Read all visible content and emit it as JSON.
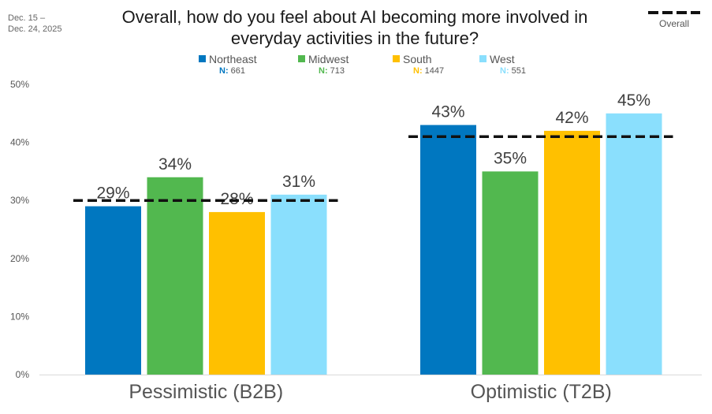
{
  "date_range": "Dec. 15 –\nDec. 24, 2025",
  "overall_legend_label": "Overall",
  "chart_data": {
    "type": "bar",
    "title": "Overall, how do you feel about AI becoming more involved in everyday activities in the future?",
    "categories": [
      "Pessimistic (B2B)",
      "Optimistic (T2B)"
    ],
    "series": [
      {
        "name": "Northeast",
        "n_label": "N:",
        "n": "661",
        "color": "#0077C0",
        "values": [
          29,
          43
        ]
      },
      {
        "name": "Midwest",
        "n_label": "N:",
        "n": "713",
        "color": "#52B84F",
        "values": [
          34,
          35
        ]
      },
      {
        "name": "South",
        "n_label": "N:",
        "n": "1447",
        "color": "#FFC000",
        "values": [
          28,
          42
        ]
      },
      {
        "name": "West",
        "n_label": "N:",
        "n": "551",
        "color": "#8ADFFD",
        "values": [
          31,
          45
        ]
      }
    ],
    "overall": {
      "name": "Overall",
      "values": [
        30,
        41
      ]
    },
    "data_labels": [
      [
        "29%",
        "43%"
      ],
      [
        "34%",
        "35%"
      ],
      [
        "28%",
        "42%"
      ],
      [
        "31%",
        "45%"
      ]
    ],
    "ylim": [
      0,
      50
    ],
    "yticks": [
      0,
      10,
      20,
      30,
      40,
      50
    ],
    "ytick_labels": [
      "0%",
      "10%",
      "20%",
      "30%",
      "40%",
      "50%"
    ],
    "xlabel": "",
    "ylabel": "",
    "grid": false,
    "legend": "top-center"
  }
}
